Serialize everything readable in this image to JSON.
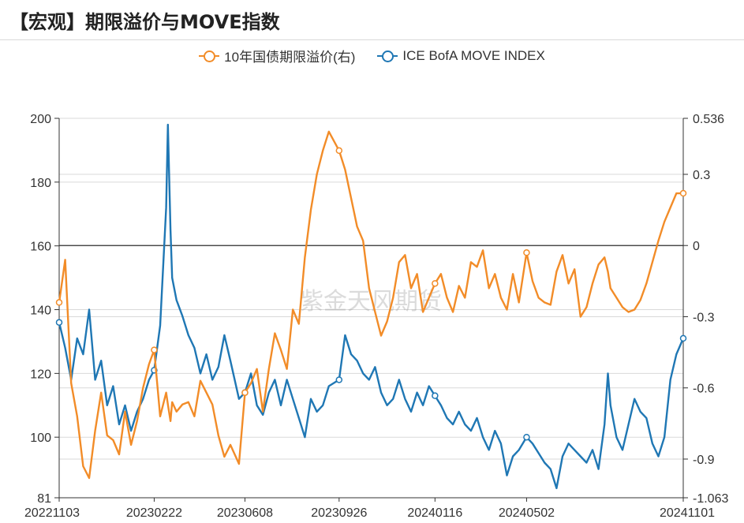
{
  "title": "【宏观】期限溢价与MOVE指数",
  "watermark": "紫金天风期货",
  "colors": {
    "orange": "#F28C28",
    "blue": "#1F77B4",
    "grid": "#d9d9d9",
    "axis": "#333333"
  },
  "chart_data": {
    "type": "line",
    "title": "【宏观】期限溢价与MOVE指数",
    "legend_position": "top-center",
    "grid": true,
    "x_tick_labels": [
      "20221103",
      "20230222",
      "20230608",
      "20230926",
      "20240116",
      "20240502",
      "20241101"
    ],
    "y_left": {
      "ticks": [
        200,
        180,
        160,
        140,
        120,
        100,
        81
      ],
      "range": [
        81,
        200
      ]
    },
    "y_right": {
      "ticks": [
        0.536,
        0.3,
        0,
        -0.3,
        -0.6,
        -0.9,
        -1.063
      ],
      "range": [
        -1.063,
        0.536
      ]
    },
    "series": [
      {
        "name": "ICE BofA MOVE INDEX",
        "axis": "left",
        "color": "#1F77B4",
        "x": [
          "20221103",
          "20221110",
          "20221117",
          "20221124",
          "20221201",
          "20221208",
          "20221215",
          "20221222",
          "20221229",
          "20230105",
          "20230112",
          "20230119",
          "20230126",
          "20230202",
          "20230209",
          "20230216",
          "20230222",
          "20230301",
          "20230308",
          "20230310",
          "20230313",
          "20230315",
          "20230320",
          "20230327",
          "20230403",
          "20230410",
          "20230417",
          "20230424",
          "20230501",
          "20230508",
          "20230515",
          "20230522",
          "20230601",
          "20230608",
          "20230615",
          "20230622",
          "20230629",
          "20230706",
          "20230713",
          "20230720",
          "20230727",
          "20230803",
          "20230810",
          "20230817",
          "20230824",
          "20230831",
          "20230907",
          "20230914",
          "20230926",
          "20231003",
          "20231010",
          "20231017",
          "20231024",
          "20231031",
          "20231107",
          "20231114",
          "20231121",
          "20231128",
          "20231205",
          "20231212",
          "20231219",
          "20231226",
          "20240102",
          "20240109",
          "20240116",
          "20240123",
          "20240130",
          "20240206",
          "20240213",
          "20240220",
          "20240227",
          "20240305",
          "20240312",
          "20240319",
          "20240326",
          "20240402",
          "20240409",
          "20240416",
          "20240423",
          "20240502",
          "20240509",
          "20240516",
          "20240523",
          "20240530",
          "20240606",
          "20240613",
          "20240620",
          "20240627",
          "20240704",
          "20240711",
          "20240718",
          "20240725",
          "20240801",
          "20240805",
          "20240808",
          "20240815",
          "20240822",
          "20240829",
          "20240905",
          "20240912",
          "20240919",
          "20240926",
          "20241003",
          "20241010",
          "20241017",
          "20241024",
          "20241101"
        ],
        "values": [
          136,
          128,
          118,
          131,
          126,
          140,
          118,
          124,
          110,
          116,
          104,
          110,
          102,
          108,
          112,
          118,
          121,
          135,
          172,
          198,
          165,
          150,
          143,
          138,
          132,
          128,
          120,
          126,
          118,
          122,
          132,
          124,
          112,
          114,
          120,
          110,
          107,
          114,
          118,
          110,
          118,
          112,
          106,
          100,
          112,
          108,
          110,
          116,
          118,
          132,
          126,
          124,
          120,
          118,
          122,
          114,
          110,
          112,
          118,
          112,
          108,
          114,
          110,
          116,
          113,
          110,
          106,
          104,
          108,
          104,
          102,
          106,
          100,
          96,
          102,
          98,
          88,
          94,
          96,
          100,
          98,
          95,
          92,
          90,
          84,
          94,
          98,
          96,
          94,
          92,
          96,
          90,
          104,
          120,
          110,
          100,
          96,
          104,
          112,
          108,
          106,
          98,
          94,
          100,
          118,
          126,
          131
        ]
      },
      {
        "name": "10年国债期限溢价(右)",
        "axis": "right",
        "color": "#F28C28",
        "x": [
          "20221103",
          "20221110",
          "20221117",
          "20221124",
          "20221201",
          "20221208",
          "20221215",
          "20221222",
          "20221229",
          "20230105",
          "20230112",
          "20230119",
          "20230126",
          "20230202",
          "20230209",
          "20230216",
          "20230222",
          "20230301",
          "20230308",
          "20230310",
          "20230313",
          "20230315",
          "20230320",
          "20230327",
          "20230403",
          "20230410",
          "20230417",
          "20230424",
          "20230501",
          "20230508",
          "20230515",
          "20230522",
          "20230601",
          "20230608",
          "20230615",
          "20230622",
          "20230629",
          "20230706",
          "20230713",
          "20230720",
          "20230727",
          "20230803",
          "20230810",
          "20230817",
          "20230824",
          "20230831",
          "20230907",
          "20230914",
          "20230926",
          "20231003",
          "20231010",
          "20231017",
          "20231024",
          "20231031",
          "20231107",
          "20231114",
          "20231121",
          "20231128",
          "20231205",
          "20231212",
          "20231219",
          "20231226",
          "20240102",
          "20240109",
          "20240116",
          "20240123",
          "20240130",
          "20240206",
          "20240213",
          "20240220",
          "20240227",
          "20240305",
          "20240312",
          "20240319",
          "20240326",
          "20240402",
          "20240409",
          "20240416",
          "20240423",
          "20240502",
          "20240509",
          "20240516",
          "20240523",
          "20240530",
          "20240606",
          "20240613",
          "20240620",
          "20240627",
          "20240704",
          "20240711",
          "20240718",
          "20240725",
          "20240801",
          "20240805",
          "20240808",
          "20240815",
          "20240822",
          "20240829",
          "20240905",
          "20240912",
          "20240919",
          "20240926",
          "20241003",
          "20241010",
          "20241017",
          "20241024",
          "20241101"
        ],
        "values": [
          -0.24,
          -0.06,
          -0.58,
          -0.72,
          -0.93,
          -0.98,
          -0.78,
          -0.62,
          -0.8,
          -0.82,
          -0.88,
          -0.7,
          -0.84,
          -0.74,
          -0.6,
          -0.5,
          -0.44,
          -0.72,
          -0.62,
          -0.67,
          -0.74,
          -0.66,
          -0.7,
          -0.67,
          -0.66,
          -0.72,
          -0.57,
          -0.62,
          -0.67,
          -0.8,
          -0.89,
          -0.84,
          -0.92,
          -0.62,
          -0.58,
          -0.52,
          -0.7,
          -0.52,
          -0.37,
          -0.44,
          -0.52,
          -0.27,
          -0.33,
          -0.05,
          0.15,
          0.3,
          0.4,
          0.48,
          0.4,
          0.32,
          0.2,
          0.08,
          0.02,
          -0.18,
          -0.28,
          -0.38,
          -0.32,
          -0.22,
          -0.07,
          -0.04,
          -0.18,
          -0.12,
          -0.28,
          -0.22,
          -0.16,
          -0.12,
          -0.22,
          -0.28,
          -0.17,
          -0.22,
          -0.07,
          -0.09,
          -0.02,
          -0.18,
          -0.12,
          -0.22,
          -0.27,
          -0.12,
          -0.24,
          -0.03,
          -0.15,
          -0.22,
          -0.24,
          -0.25,
          -0.11,
          -0.04,
          -0.16,
          -0.1,
          -0.3,
          -0.26,
          -0.16,
          -0.08,
          -0.05,
          -0.11,
          -0.18,
          -0.22,
          -0.26,
          -0.28,
          -0.27,
          -0.23,
          -0.16,
          -0.07,
          0.02,
          0.1,
          0.16,
          0.22,
          0.22
        ]
      }
    ]
  }
}
